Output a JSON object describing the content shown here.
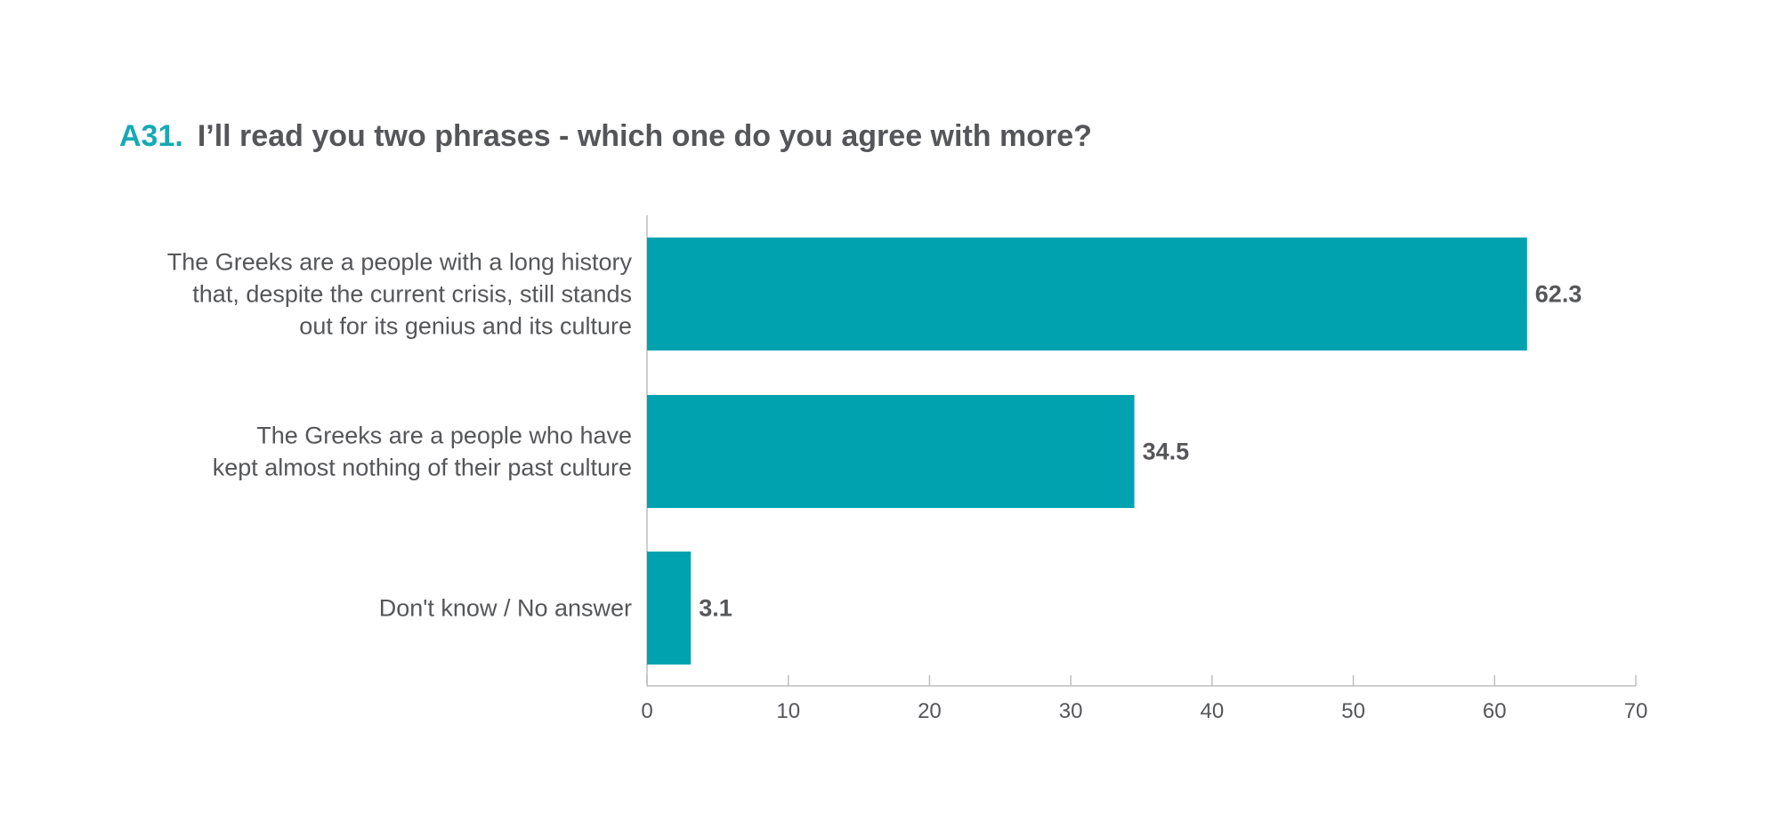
{
  "title": {
    "question_id": "A31.",
    "text": "I’ll read you two phrases - which one do you agree with more?"
  },
  "colors": {
    "bar": "#00a2b0",
    "accent": "#17a9b6",
    "text": "#555659",
    "axis": "#bdbdbd"
  },
  "chart_data": {
    "type": "bar",
    "orientation": "horizontal",
    "categories": [
      [
        "The Greeks are a people with a long history",
        "that, despite the current crisis, still stands",
        "out for its genius and its culture"
      ],
      [
        "The Greeks are a people who have",
        "kept almost nothing of their past culture"
      ],
      [
        "Don't know / No answer"
      ]
    ],
    "values": [
      62.3,
      34.5,
      3.1
    ],
    "value_labels": [
      "62.3",
      "34.5",
      "3.1"
    ],
    "xlim": [
      0,
      70
    ],
    "xticks": [
      0,
      10,
      20,
      30,
      40,
      50,
      60,
      70
    ],
    "grid": false,
    "legend": "none"
  }
}
